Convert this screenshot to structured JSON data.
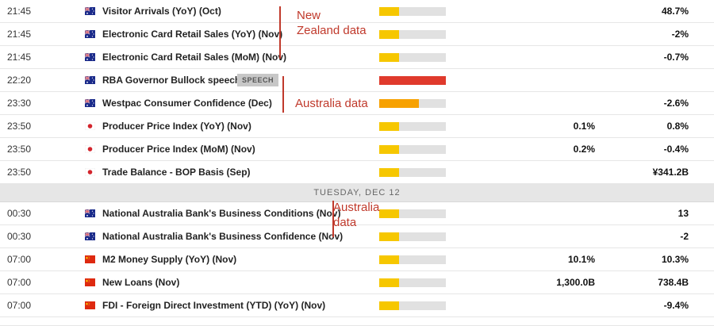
{
  "colors": {
    "bar_track": "#e1e1e1",
    "impact_low": "#f6c700",
    "impact_medium": "#f7a100",
    "impact_high": "#e03a2c",
    "annotation": "#c0392b"
  },
  "day_separator": {
    "label": "TUESDAY, DEC 12"
  },
  "annotations": {
    "nz": "New Zealand data",
    "au1": "Australia data",
    "au2": "Australia data"
  },
  "events_before": [
    {
      "time": "21:45",
      "flag": "australia-flag-icon",
      "name": "Visitor Arrivals (YoY) (Oct)",
      "tag": "",
      "impact": "low",
      "impact_level": 0.3,
      "forecast": "",
      "previous": "48.7%"
    },
    {
      "time": "21:45",
      "flag": "australia-flag-icon",
      "name": "Electronic Card Retail Sales (YoY) (Nov)",
      "tag": "",
      "impact": "low",
      "impact_level": 0.3,
      "forecast": "",
      "previous": "-2%"
    },
    {
      "time": "21:45",
      "flag": "australia-flag-icon",
      "name": "Electronic Card Retail Sales (MoM) (Nov)",
      "tag": "",
      "impact": "low",
      "impact_level": 0.3,
      "forecast": "",
      "previous": "-0.7%"
    },
    {
      "time": "22:20",
      "flag": "australia-flag-icon",
      "name": "RBA Governor Bullock speech",
      "tag": "SPEECH",
      "impact": "high",
      "impact_level": 1.0,
      "forecast": "",
      "previous": ""
    },
    {
      "time": "23:30",
      "flag": "australia-flag-icon",
      "name": "Westpac Consumer Confidence (Dec)",
      "tag": "",
      "impact": "medium",
      "impact_level": 0.6,
      "forecast": "",
      "previous": "-2.6%"
    },
    {
      "time": "23:50",
      "flag": "japan-flag-icon",
      "name": "Producer Price Index (YoY) (Nov)",
      "tag": "",
      "impact": "low",
      "impact_level": 0.3,
      "forecast": "0.1%",
      "previous": "0.8%"
    },
    {
      "time": "23:50",
      "flag": "japan-flag-icon",
      "name": "Producer Price Index (MoM) (Nov)",
      "tag": "",
      "impact": "low",
      "impact_level": 0.3,
      "forecast": "0.2%",
      "previous": "-0.4%"
    },
    {
      "time": "23:50",
      "flag": "japan-flag-icon",
      "name": "Trade Balance - BOP Basis (Sep)",
      "tag": "",
      "impact": "low",
      "impact_level": 0.3,
      "forecast": "",
      "previous": "¥341.2B"
    }
  ],
  "events_after": [
    {
      "time": "00:30",
      "flag": "australia-flag-icon",
      "name": "National Australia Bank's Business Conditions (Nov)",
      "tag": "",
      "impact": "low",
      "impact_level": 0.3,
      "forecast": "",
      "previous": "13"
    },
    {
      "time": "00:30",
      "flag": "australia-flag-icon",
      "name": "National Australia Bank's Business Confidence (Nov)",
      "tag": "",
      "impact": "low",
      "impact_level": 0.3,
      "forecast": "",
      "previous": "-2"
    },
    {
      "time": "07:00",
      "flag": "china-flag-icon",
      "name": "M2 Money Supply (YoY) (Nov)",
      "tag": "",
      "impact": "low",
      "impact_level": 0.3,
      "forecast": "10.1%",
      "previous": "10.3%"
    },
    {
      "time": "07:00",
      "flag": "china-flag-icon",
      "name": "New Loans (Nov)",
      "tag": "",
      "impact": "low",
      "impact_level": 0.3,
      "forecast": "1,300.0B",
      "previous": "738.4B"
    },
    {
      "time": "07:00",
      "flag": "china-flag-icon",
      "name": "FDI - Foreign Direct Investment (YTD) (YoY) (Nov)",
      "tag": "",
      "impact": "low",
      "impact_level": 0.3,
      "forecast": "",
      "previous": "-9.4%"
    }
  ]
}
